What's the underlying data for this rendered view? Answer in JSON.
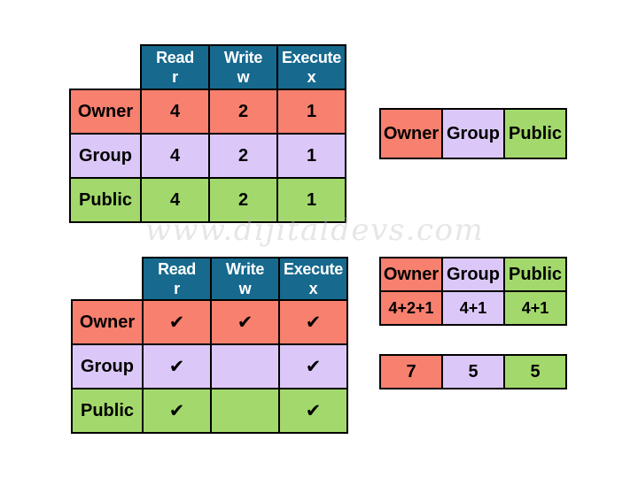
{
  "colors": {
    "header": "#17698e",
    "headertext": "#ffffff",
    "owner": "#f8806f",
    "group": "#dcc8f8",
    "public": "#a3d96c",
    "border": "#000000",
    "text": "#000000"
  },
  "watermark": {
    "text": "www.dijitaldevs.com"
  },
  "numeric_table": {
    "columns": [
      {
        "line1": "Read",
        "line2": "r"
      },
      {
        "line1": "Write",
        "line2": "w"
      },
      {
        "line1": "Execute",
        "line2": "x"
      }
    ],
    "rows": [
      {
        "label": "Owner",
        "values": [
          "4",
          "2",
          "1"
        ]
      },
      {
        "label": "Group",
        "values": [
          "4",
          "2",
          "1"
        ]
      },
      {
        "label": "Public",
        "values": [
          "4",
          "2",
          "1"
        ]
      }
    ]
  },
  "entity_strip": {
    "cells": [
      "Owner",
      "Group",
      "Public"
    ]
  },
  "check_table": {
    "columns": [
      {
        "line1": "Read",
        "line2": "r"
      },
      {
        "line1": "Write",
        "line2": "w"
      },
      {
        "line1": "Execute",
        "line2": "x"
      }
    ],
    "rows": [
      {
        "label": "Owner",
        "values": [
          "✔",
          "✔",
          "✔"
        ]
      },
      {
        "label": "Group",
        "values": [
          "✔",
          "",
          "✔"
        ]
      },
      {
        "label": "Public",
        "values": [
          "✔",
          "",
          "✔"
        ]
      }
    ]
  },
  "sum_table": {
    "headers": [
      "Owner",
      "Group",
      "Public"
    ],
    "values": [
      "4+2+1",
      "4+1",
      "4+1"
    ]
  },
  "result_strip": {
    "values": [
      "7",
      "5",
      "5"
    ]
  }
}
